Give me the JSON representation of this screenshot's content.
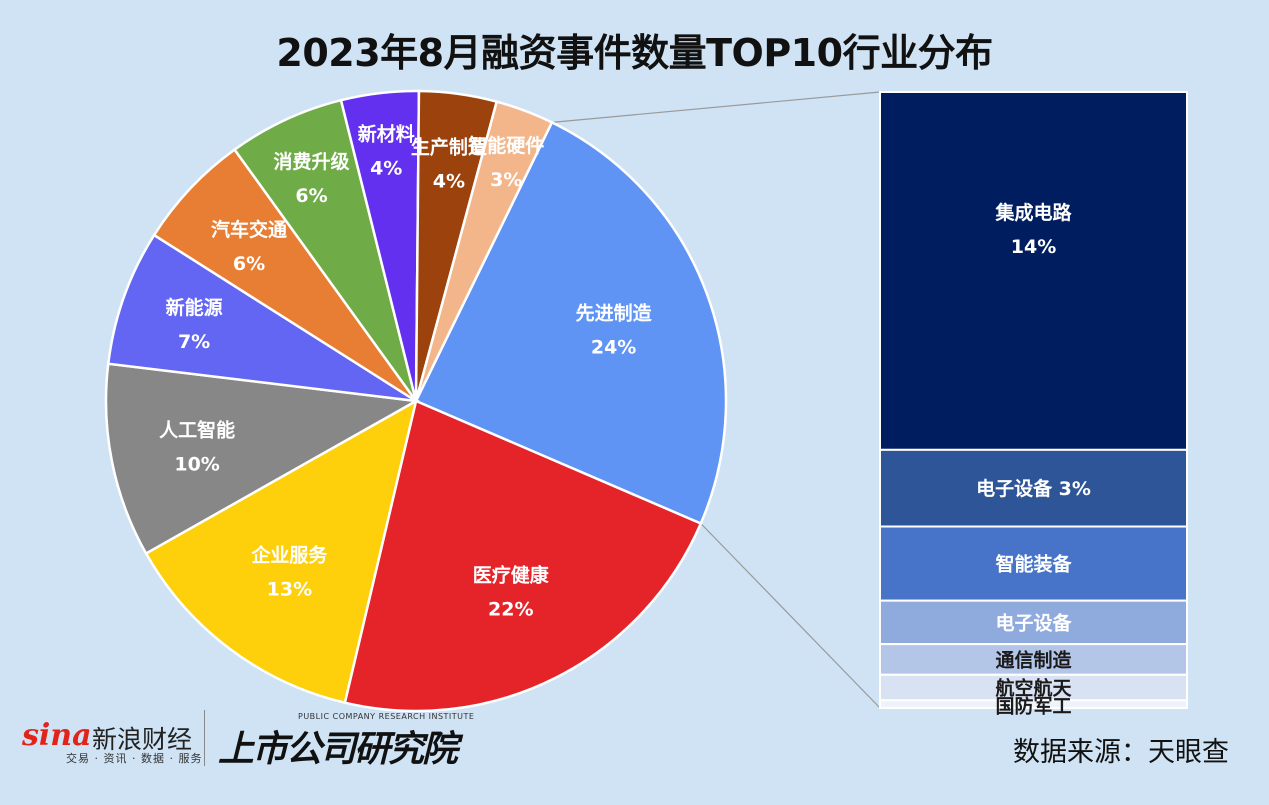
{
  "title": "2023年8月融资事件数量TOP10行业分布",
  "source": "数据来源：天眼查",
  "logos": {
    "sina_word": "sina",
    "sina_cn": "新浪财经",
    "sina_sub": "交易 · 资讯 · 数据 · 服务",
    "inst_en": "PUBLIC COMPANY RESEARCH INSTITUTE",
    "inst_cn": "上市公司研究院"
  },
  "chart_data": [
    {
      "type": "pie",
      "title": "2023年8月融资事件数量TOP10行业分布",
      "slices": [
        {
          "label": "先进制造",
          "value": 24,
          "value_label": "24%",
          "color": "#6094f4"
        },
        {
          "label": "医疗健康",
          "value": 22,
          "value_label": "22%",
          "color": "#e5242a"
        },
        {
          "label": "企业服务",
          "value": 13,
          "value_label": "13%",
          "color": "#fdd00b"
        },
        {
          "label": "人工智能",
          "value": 10,
          "value_label": "10%",
          "color": "#878787"
        },
        {
          "label": "新能源",
          "value": 7,
          "value_label": "7%",
          "color": "#6266f2"
        },
        {
          "label": "汽车交通",
          "value": 6,
          "value_label": "6%",
          "color": "#e87e33"
        },
        {
          "label": "消费升级",
          "value": 6,
          "value_label": "6%",
          "color": "#6fac47"
        },
        {
          "label": "新材料",
          "value": 4,
          "value_label": "4%",
          "color": "#6330f0"
        },
        {
          "label": "生产制造",
          "value": 4,
          "value_label": "4%",
          "color": "#9c420c"
        },
        {
          "label": "智能硬件",
          "value": 3,
          "value_label": "3%",
          "color": "#f3b68b"
        }
      ]
    },
    {
      "type": "bar",
      "stacked": true,
      "parent": "先进制造",
      "segments": [
        {
          "label": "集成电路",
          "value_label": "14%",
          "value": 14,
          "color": "#001e5f"
        },
        {
          "label": "电子设备",
          "value_label": "3%",
          "value": 3,
          "color": "#2e5598"
        },
        {
          "label": "智能装备",
          "value_label": "",
          "value": 2.9,
          "color": "#4774c8"
        },
        {
          "label": "电子设备",
          "value_label": "",
          "value": 1.7,
          "color": "#8fabde"
        },
        {
          "label": "通信制造",
          "value_label": "",
          "value": 1.2,
          "color": "#b3c6e8"
        },
        {
          "label": "航空航天",
          "value_label": "",
          "value": 1.0,
          "color": "#d9e2f3"
        },
        {
          "label": "国防军工",
          "value_label": "",
          "value": 0.3,
          "color": "#eef2f9"
        }
      ]
    }
  ]
}
